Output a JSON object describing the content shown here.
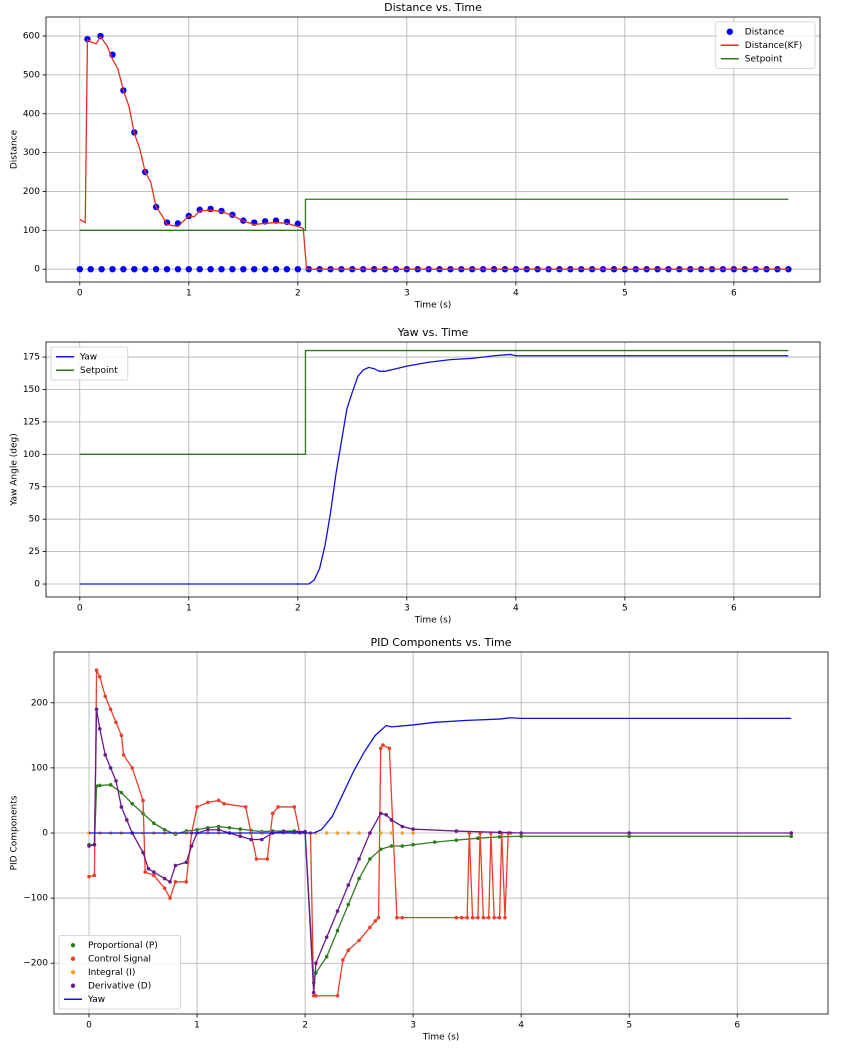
{
  "chart_data": [
    {
      "type": "line",
      "title": "Distance vs. Time",
      "xlabel": "Time (s)",
      "ylabel": "Distance",
      "xlim": [
        -0.31,
        6.79
      ],
      "ylim": [
        -33,
        649
      ],
      "xticks": [
        0,
        1,
        2,
        3,
        4,
        5,
        6
      ],
      "yticks": [
        0,
        100,
        200,
        300,
        400,
        500,
        600
      ],
      "grid": true,
      "legend": "upper right",
      "series": [
        {
          "name": "Distance",
          "color": "#0000ff",
          "mode": "markers",
          "x": [
            0.07,
            0.19,
            0.3,
            0.4,
            0.5,
            0.6,
            0.7,
            0.8,
            0.9,
            1.0,
            1.1,
            1.2,
            1.3,
            1.4,
            1.5,
            1.6,
            1.7,
            1.8,
            1.9,
            2.0,
            0,
            0.1,
            0.2,
            0.3,
            0.4,
            0.5,
            0.6,
            0.7,
            0.8,
            0.9,
            1.0,
            1.1,
            1.2,
            1.3,
            1.4,
            1.5,
            1.6,
            1.7,
            1.8,
            1.9,
            2.0,
            2.1,
            2.2,
            2.3,
            2.4,
            2.5,
            2.6,
            2.7,
            2.8,
            2.9,
            3.0,
            3.1,
            3.2,
            3.3,
            3.4,
            3.5,
            3.6,
            3.7,
            3.8,
            3.9,
            4.0,
            4.1,
            4.2,
            4.3,
            4.4,
            4.5,
            4.6,
            4.7,
            4.8,
            4.9,
            5.0,
            5.1,
            5.2,
            5.3,
            5.4,
            5.5,
            5.6,
            5.7,
            5.8,
            5.9,
            6.0,
            6.1,
            6.2,
            6.3,
            6.4,
            6.5
          ],
          "values": [
            592,
            600,
            552,
            460,
            352,
            250,
            160,
            120,
            118,
            137,
            153,
            155,
            150,
            140,
            125,
            120,
            123,
            125,
            122,
            117,
            0,
            0,
            0,
            0,
            0,
            0,
            0,
            0,
            0,
            0,
            0,
            0,
            0,
            0,
            0,
            0,
            0,
            0,
            0,
            0,
            0,
            0,
            0,
            0,
            0,
            0,
            0,
            0,
            0,
            0,
            0,
            0,
            0,
            0,
            0,
            0,
            0,
            0,
            0,
            0,
            0,
            0,
            0,
            0,
            0,
            0,
            0,
            0,
            0,
            0,
            0,
            0,
            0,
            0,
            0,
            0,
            0,
            0,
            0,
            0,
            0,
            0,
            0,
            0,
            0,
            0
          ]
        },
        {
          "name": "Distance(KF)",
          "color": "#e0301e",
          "mode": "lines",
          "x": [
            0,
            0.05,
            0.07,
            0.1,
            0.15,
            0.19,
            0.25,
            0.3,
            0.35,
            0.4,
            0.45,
            0.5,
            0.55,
            0.6,
            0.65,
            0.7,
            0.75,
            0.8,
            0.9,
            1.0,
            1.05,
            1.1,
            1.2,
            1.3,
            1.4,
            1.5,
            1.6,
            1.7,
            1.8,
            1.9,
            2.0,
            2.05,
            2.08,
            6.5
          ],
          "values": [
            128,
            120,
            590,
            585,
            580,
            598,
            575,
            540,
            515,
            460,
            420,
            350,
            310,
            250,
            225,
            160,
            140,
            115,
            110,
            137,
            135,
            150,
            152,
            148,
            138,
            124,
            115,
            118,
            120,
            118,
            110,
            105,
            0,
            0
          ]
        },
        {
          "name": "Setpoint",
          "color": "#2a7a1a",
          "mode": "lines",
          "x": [
            0,
            2.07,
            2.07,
            6.5
          ],
          "values": [
            100,
            100,
            180,
            180
          ]
        }
      ]
    },
    {
      "type": "line",
      "title": "Yaw vs. Time",
      "xlabel": "Time (s)",
      "ylabel": "Yaw Angle (deg)",
      "xlim": [
        -0.31,
        6.79
      ],
      "ylim": [
        -10,
        186.6
      ],
      "xticks": [
        0,
        1,
        2,
        3,
        4,
        5,
        6
      ],
      "yticks": [
        0,
        25,
        50,
        75,
        100,
        125,
        150,
        175
      ],
      "grid": true,
      "legend": "upper left",
      "series": [
        {
          "name": "Yaw",
          "color": "#1010dd",
          "mode": "lines",
          "x": [
            0,
            2.1,
            2.15,
            2.2,
            2.25,
            2.3,
            2.35,
            2.4,
            2.45,
            2.5,
            2.55,
            2.6,
            2.65,
            2.7,
            2.75,
            2.8,
            2.9,
            3.0,
            3.2,
            3.4,
            3.6,
            3.8,
            3.95,
            4.0,
            6.5
          ],
          "values": [
            0,
            0,
            3,
            12,
            30,
            55,
            85,
            110,
            135,
            148,
            160,
            165,
            167,
            166,
            164,
            164,
            166,
            168,
            171,
            173,
            174,
            176,
            177,
            176,
            176
          ]
        },
        {
          "name": "Setpoint",
          "color": "#2a7a1a",
          "mode": "lines",
          "x": [
            0,
            2.07,
            2.07,
            6.5
          ],
          "values": [
            100,
            100,
            180,
            180
          ]
        }
      ]
    },
    {
      "type": "line",
      "title": "PID Components vs. Time",
      "xlabel": "Time (s)",
      "ylabel": "PID Components",
      "xlim": [
        -0.324,
        6.84
      ],
      "ylim": [
        -278,
        278
      ],
      "xticks": [
        0,
        1,
        2,
        3,
        4,
        5,
        6
      ],
      "yticks": [
        {
          "value": -200,
          "label": "−200"
        },
        {
          "value": -100,
          "label": "−100"
        },
        0,
        100,
        200
      ],
      "grid": true,
      "legend": "lower left",
      "series": [
        {
          "name": "Proportional (P)",
          "color": "#2e7d1e",
          "mode": "lines+markers",
          "x": [
            0,
            0.05,
            0.07,
            0.1,
            0.2,
            0.3,
            0.4,
            0.5,
            0.6,
            0.7,
            0.8,
            0.9,
            1.0,
            1.1,
            1.2,
            1.3,
            1.4,
            1.5,
            1.6,
            1.7,
            1.8,
            1.9,
            2.0,
            2.08,
            2.1,
            2.2,
            2.3,
            2.4,
            2.5,
            2.6,
            2.7,
            2.8,
            2.9,
            3.0,
            3.2,
            3.4,
            3.6,
            3.8,
            4.0,
            5.0,
            6.5
          ],
          "values": [
            -18,
            -18,
            72,
            73,
            74,
            62,
            45,
            30,
            15,
            5,
            -2,
            3,
            5,
            8,
            10,
            8,
            6,
            4,
            2,
            3,
            3,
            3,
            2,
            -230,
            -215,
            -190,
            -150,
            -110,
            -70,
            -40,
            -25,
            -20,
            -20,
            -18,
            -14,
            -11,
            -8,
            -6,
            -5,
            -5,
            -5
          ]
        },
        {
          "name": "Control Signal",
          "color": "#e8402a",
          "mode": "lines+markers",
          "x": [
            0,
            0.05,
            0.07,
            0.1,
            0.15,
            0.2,
            0.25,
            0.3,
            0.32,
            0.4,
            0.5,
            0.52,
            0.6,
            0.7,
            0.75,
            0.8,
            0.9,
            0.95,
            1.0,
            1.1,
            1.2,
            1.25,
            1.45,
            1.5,
            1.55,
            1.65,
            1.7,
            1.75,
            1.9,
            1.95,
            2.05,
            2.08,
            2.1,
            2.3,
            2.35,
            2.4,
            2.5,
            2.6,
            2.65,
            2.68,
            2.7,
            2.72,
            2.78,
            2.85,
            2.9,
            3.4,
            3.45,
            3.5,
            3.52,
            3.55,
            3.6,
            3.62,
            3.65,
            3.7,
            3.72,
            3.75,
            3.8,
            3.82,
            3.85,
            3.88,
            3.9
          ],
          "values": [
            -67,
            -65,
            250,
            240,
            210,
            190,
            170,
            150,
            120,
            100,
            50,
            -60,
            -65,
            -85,
            -100,
            -75,
            -75,
            0,
            40,
            47,
            50,
            45,
            40,
            0,
            -40,
            -40,
            30,
            40,
            40,
            0,
            0,
            -250,
            -250,
            -250,
            -195,
            -180,
            -165,
            -145,
            -135,
            -130,
            130,
            135,
            130,
            -130,
            -130,
            -130,
            -130,
            -130,
            0,
            -130,
            -130,
            0,
            -130,
            -130,
            0,
            -130,
            -130,
            0,
            -130,
            0,
            0
          ]
        },
        {
          "name": "Integral (I)",
          "color": "#f5a030",
          "mode": "markers",
          "x": [
            0,
            0.1,
            0.2,
            0.3,
            0.4,
            0.5,
            0.6,
            0.7,
            0.8,
            0.9,
            1.0,
            1.1,
            1.2,
            1.3,
            1.4,
            1.5,
            1.6,
            1.7,
            1.8,
            1.9,
            2.0,
            2.1,
            2.2,
            2.3,
            2.4,
            2.5,
            2.6,
            2.7,
            2.8,
            2.9,
            3.0
          ],
          "values": [
            0,
            0,
            0,
            0,
            0,
            0,
            0,
            0,
            0,
            0,
            0,
            0,
            0,
            0,
            0,
            0,
            0,
            0,
            0,
            0,
            0,
            0,
            0,
            0,
            0,
            0,
            0,
            0,
            0,
            0,
            0
          ]
        },
        {
          "name": "Derivative (D)",
          "color": "#6a1b8a",
          "mode": "lines+markers",
          "x": [
            0,
            0.05,
            0.07,
            0.1,
            0.15,
            0.2,
            0.25,
            0.3,
            0.35,
            0.4,
            0.5,
            0.55,
            0.6,
            0.7,
            0.75,
            0.8,
            0.9,
            0.95,
            1.0,
            1.1,
            1.2,
            1.3,
            1.4,
            1.5,
            1.6,
            1.7,
            1.8,
            2.0,
            2.08,
            2.1,
            2.2,
            2.3,
            2.4,
            2.5,
            2.6,
            2.7,
            2.75,
            2.8,
            2.9,
            3.0,
            3.4,
            3.8,
            4.0,
            5.0,
            6.5
          ],
          "values": [
            -20,
            -18,
            190,
            160,
            120,
            100,
            80,
            40,
            20,
            0,
            -30,
            -55,
            -60,
            -70,
            -75,
            -50,
            -45,
            -20,
            0,
            5,
            5,
            0,
            -5,
            -10,
            -10,
            0,
            2,
            2,
            -245,
            -200,
            -160,
            -120,
            -80,
            -40,
            0,
            30,
            28,
            20,
            10,
            6,
            3,
            1,
            0,
            0,
            0
          ]
        },
        {
          "name": "Yaw",
          "color": "#1010dd",
          "mode": "lines",
          "x": [
            0,
            2.08,
            2.15,
            2.25,
            2.35,
            2.45,
            2.55,
            2.65,
            2.75,
            2.8,
            3.0,
            3.2,
            3.5,
            3.8,
            3.9,
            4.0,
            6.5
          ],
          "values": [
            0,
            0,
            5,
            25,
            60,
            95,
            125,
            150,
            165,
            163,
            166,
            170,
            173,
            175,
            177,
            176,
            176
          ]
        }
      ]
    }
  ]
}
